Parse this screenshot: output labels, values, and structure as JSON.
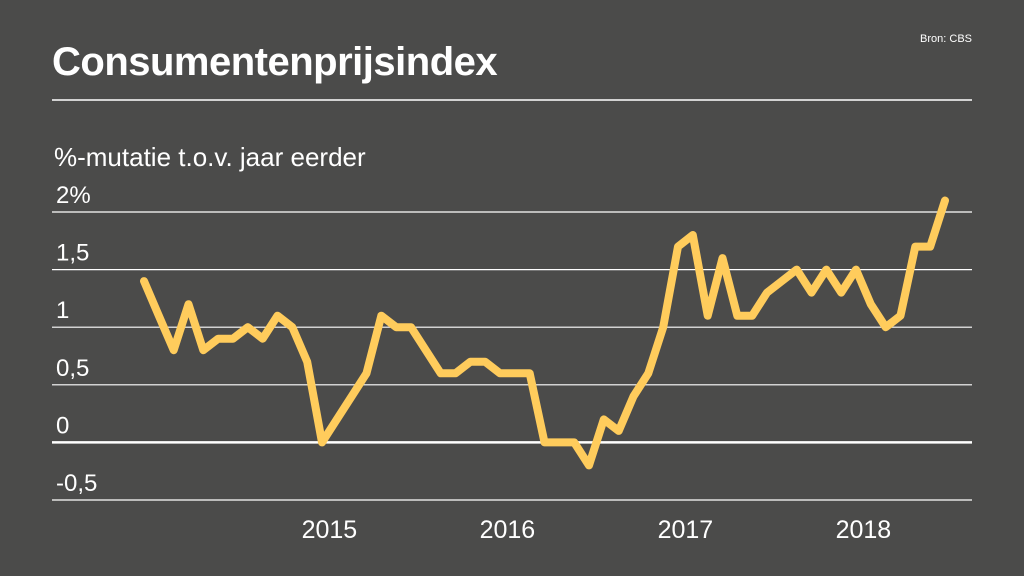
{
  "title": "Consumentenprijsindex",
  "source": "Bron: CBS",
  "chart_data": {
    "type": "line",
    "title": "Consumentenprijsindex",
    "ylabel": "%-mutatie t.o.v. jaar eerder",
    "xlabel": "",
    "ylim": [
      -0.5,
      2
    ],
    "ytick_values": [
      -0.5,
      0,
      0.5,
      1,
      1.5,
      2
    ],
    "ytick_labels": [
      "-0,5",
      "0",
      "0,5",
      "1",
      "1,5",
      "2%"
    ],
    "xtick_labels": [
      "2015",
      "2016",
      "2017",
      "2018"
    ],
    "xtick_indices": [
      12.5,
      24.5,
      36.5,
      48.5
    ],
    "x_start": "2014-01",
    "line_color": "#ffcc5c",
    "grid": true,
    "values": [
      1.4,
      1.1,
      0.8,
      1.2,
      0.8,
      0.9,
      0.9,
      1.0,
      0.9,
      1.1,
      1.0,
      0.7,
      0.0,
      0.2,
      0.4,
      0.6,
      1.1,
      1.0,
      1.0,
      0.8,
      0.6,
      0.6,
      0.7,
      0.7,
      0.6,
      0.6,
      0.6,
      0.0,
      0.0,
      0.0,
      -0.2,
      0.2,
      0.1,
      0.4,
      0.6,
      1.0,
      1.7,
      1.8,
      1.1,
      1.6,
      1.1,
      1.1,
      1.3,
      1.4,
      1.5,
      1.3,
      1.5,
      1.3,
      1.5,
      1.2,
      1.0,
      1.1,
      1.7,
      1.7,
      2.1
    ]
  }
}
